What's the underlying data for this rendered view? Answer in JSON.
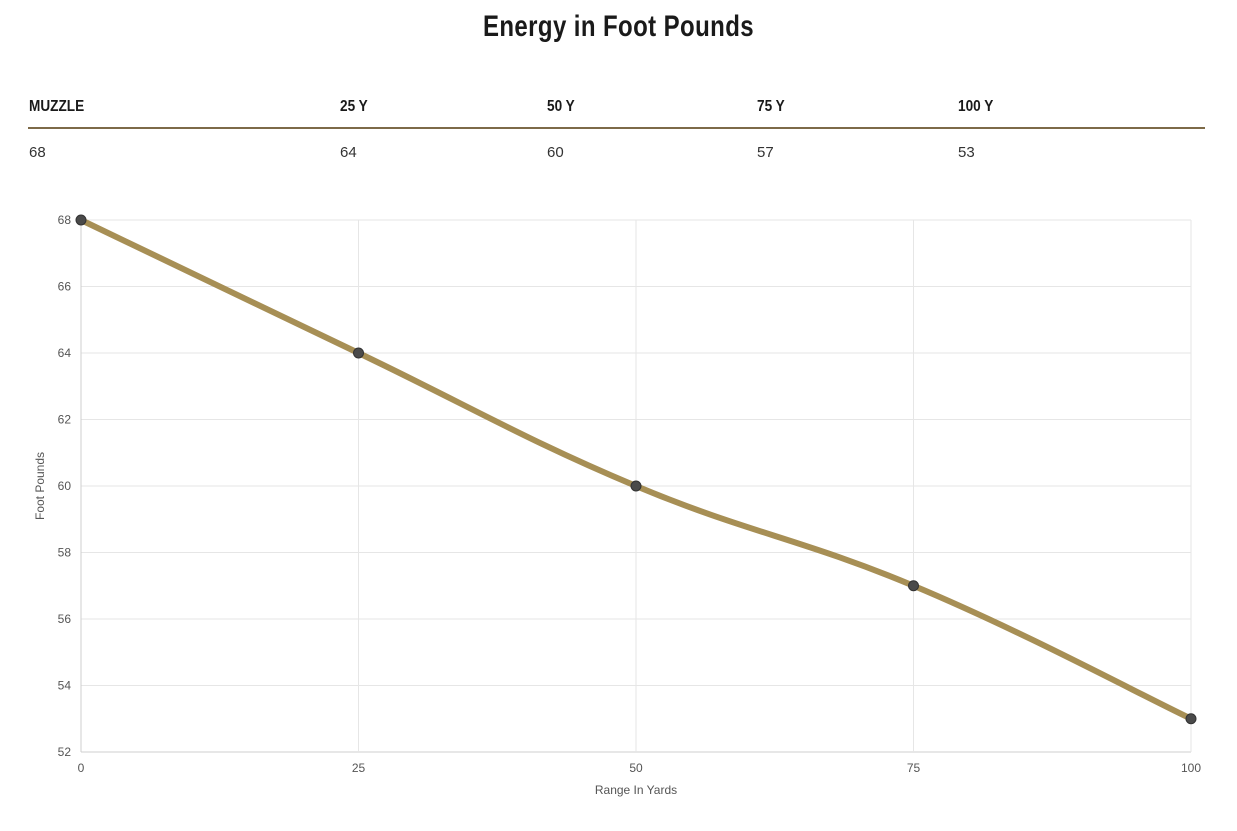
{
  "title": "Energy in Foot Pounds",
  "table": {
    "headers": [
      "MUZZLE",
      "25 Y",
      "50 Y",
      "75 Y",
      "100 Y"
    ],
    "values": [
      "68",
      "64",
      "60",
      "57",
      "53"
    ]
  },
  "chart_data": {
    "type": "line",
    "title": "Energy in Foot Pounds",
    "xlabel": "Range In Yards",
    "ylabel": "Foot Pounds",
    "x": [
      0,
      25,
      50,
      75,
      100
    ],
    "series": [
      {
        "name": "Energy",
        "values": [
          68,
          64,
          60,
          57,
          53
        ]
      }
    ],
    "xlim": [
      0,
      100
    ],
    "ylim": [
      52,
      68
    ],
    "xticks": [
      0,
      25,
      50,
      75,
      100
    ],
    "yticks": [
      52,
      54,
      56,
      58,
      60,
      62,
      64,
      66,
      68
    ],
    "grid": true,
    "line_color": "#a78f55",
    "point_color": "#4a4a4a"
  }
}
